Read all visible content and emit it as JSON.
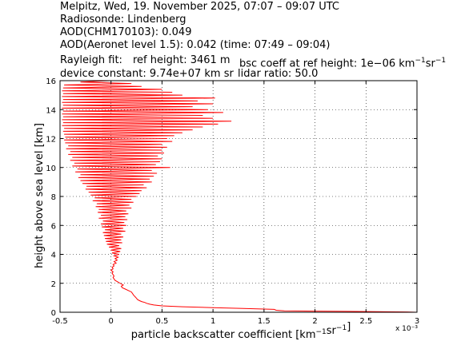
{
  "header": {
    "line1": "Melpitz, Wed, 19. November 2025, 07:07 – 09:07 UTC",
    "line2": "Radiosonde: Lindenberg",
    "line3": "AOD(CHM170103): 0.049",
    "line4": "AOD(Aeronet level 1.5): 0.042   (time: 07:49 – 09:04)",
    "rayleigh_label": "Rayleigh fit:",
    "ref_height": "ref height: 3461 m",
    "bsc_coeff_prefix": "bsc coeff at ref height: 1e−06 km",
    "device_constant": "device constant: 9.74e+07 km sr",
    "lidar_ratio": "lidar ratio: 50.0"
  },
  "chart_data": {
    "type": "line",
    "xlabel": "particle backscatter coefficient [km⁻¹sr⁻¹]",
    "ylabel": "height above sea level [km]",
    "x_multiplier": "x 10⁻³",
    "xlim": [
      -0.5,
      3
    ],
    "ylim": [
      0,
      16
    ],
    "x_ticks": [
      -0.5,
      0,
      0.5,
      1,
      1.5,
      2,
      2.5,
      3
    ],
    "x_tick_labels": [
      "-0.5",
      "0",
      "0.5",
      "1",
      "1.5",
      "2",
      "2.5",
      "3"
    ],
    "y_ticks": [
      0,
      2,
      4,
      6,
      8,
      10,
      12,
      14,
      16
    ],
    "y_tick_labels": [
      "0",
      "2",
      "4",
      "6",
      "8",
      "10",
      "12",
      "14",
      "16"
    ],
    "grid": true,
    "line_color": "#ff0000",
    "series": [
      {
        "values_note": "",
        "points": [
          [
            3.0,
            0.0
          ],
          [
            2.9,
            0.02
          ],
          [
            2.6,
            0.04
          ],
          [
            2.3,
            0.06
          ],
          [
            2.0,
            0.08
          ],
          [
            1.7,
            0.1
          ],
          [
            1.62,
            0.14
          ],
          [
            1.6,
            0.2
          ],
          [
            1.3,
            0.26
          ],
          [
            1.0,
            0.32
          ],
          [
            0.7,
            0.38
          ],
          [
            0.5,
            0.44
          ],
          [
            0.42,
            0.5
          ],
          [
            0.38,
            0.56
          ],
          [
            0.35,
            0.62
          ],
          [
            0.33,
            0.68
          ],
          [
            0.3,
            0.74
          ],
          [
            0.28,
            0.8
          ],
          [
            0.26,
            0.88
          ],
          [
            0.25,
            0.96
          ],
          [
            0.24,
            1.04
          ],
          [
            0.23,
            1.12
          ],
          [
            0.22,
            1.2
          ],
          [
            0.21,
            1.3
          ],
          [
            0.2,
            1.4
          ],
          [
            0.17,
            1.5
          ],
          [
            0.14,
            1.6
          ],
          [
            0.11,
            1.7
          ],
          [
            0.1,
            1.8
          ],
          [
            0.12,
            1.88
          ],
          [
            0.1,
            1.96
          ],
          [
            0.08,
            2.04
          ],
          [
            0.06,
            2.12
          ],
          [
            0.04,
            2.2
          ],
          [
            0.03,
            2.3
          ],
          [
            0.02,
            2.4
          ],
          [
            0.03,
            2.5
          ],
          [
            0.02,
            2.6
          ],
          [
            0.01,
            2.7
          ],
          [
            0.02,
            2.8
          ],
          [
            0.0,
            2.9
          ],
          [
            0.02,
            3.0
          ],
          [
            0.01,
            3.1
          ],
          [
            0.03,
            3.2
          ],
          [
            0.02,
            3.3
          ],
          [
            0.05,
            3.4
          ],
          [
            0.03,
            3.5
          ],
          [
            0.06,
            3.6
          ],
          [
            0.04,
            3.7
          ],
          [
            0.07,
            3.8
          ],
          [
            0.03,
            3.9
          ],
          [
            0.08,
            4.0
          ],
          [
            0.01,
            4.1
          ],
          [
            0.09,
            4.2
          ],
          [
            0.0,
            4.3
          ],
          [
            0.1,
            4.4
          ],
          [
            -0.02,
            4.5
          ],
          [
            0.08,
            4.6
          ],
          [
            -0.04,
            4.7
          ],
          [
            0.11,
            4.8
          ],
          [
            -0.05,
            4.9
          ],
          [
            0.1,
            5.0
          ],
          [
            -0.06,
            5.1
          ],
          [
            0.12,
            5.2
          ],
          [
            -0.07,
            5.3
          ],
          [
            0.1,
            5.4
          ],
          [
            -0.08,
            5.5
          ],
          [
            0.14,
            5.6
          ],
          [
            -0.06,
            5.7
          ],
          [
            0.12,
            5.8
          ],
          [
            -0.09,
            5.9
          ],
          [
            0.15,
            6.0
          ],
          [
            -0.1,
            6.1
          ],
          [
            0.13,
            6.2
          ],
          [
            -0.08,
            6.3
          ],
          [
            0.16,
            6.4
          ],
          [
            -0.12,
            6.5
          ],
          [
            0.14,
            6.6
          ],
          [
            -0.1,
            6.7
          ],
          [
            0.17,
            6.8
          ],
          [
            -0.13,
            6.9
          ],
          [
            0.15,
            7.0
          ],
          [
            -0.12,
            7.1
          ],
          [
            0.2,
            7.2
          ],
          [
            -0.15,
            7.3
          ],
          [
            0.18,
            7.4
          ],
          [
            -0.14,
            7.5
          ],
          [
            0.22,
            7.6
          ],
          [
            -0.18,
            7.7
          ],
          [
            0.2,
            7.8
          ],
          [
            -0.16,
            7.9
          ],
          [
            0.25,
            8.0
          ],
          [
            -0.2,
            8.1
          ],
          [
            0.28,
            8.2
          ],
          [
            -0.22,
            8.3
          ],
          [
            0.3,
            8.4
          ],
          [
            -0.25,
            8.5
          ],
          [
            0.35,
            8.6
          ],
          [
            -0.24,
            8.7
          ],
          [
            0.32,
            8.8
          ],
          [
            -0.28,
            8.9
          ],
          [
            0.4,
            9.0
          ],
          [
            -0.3,
            9.1
          ],
          [
            0.38,
            9.2
          ],
          [
            -0.32,
            9.3
          ],
          [
            0.42,
            9.4
          ],
          [
            -0.3,
            9.5
          ],
          [
            0.45,
            9.6
          ],
          [
            -0.35,
            9.7
          ],
          [
            0.4,
            9.8
          ],
          [
            -0.33,
            9.9
          ],
          [
            0.58,
            10.0
          ],
          [
            -0.38,
            10.1
          ],
          [
            0.44,
            10.2
          ],
          [
            -0.36,
            10.3
          ],
          [
            0.48,
            10.4
          ],
          [
            -0.4,
            10.5
          ],
          [
            0.5,
            10.6
          ],
          [
            -0.38,
            10.7
          ],
          [
            0.46,
            10.8
          ],
          [
            -0.42,
            10.9
          ],
          [
            0.52,
            11.0
          ],
          [
            -0.4,
            11.1
          ],
          [
            0.5,
            11.2
          ],
          [
            -0.44,
            11.3
          ],
          [
            0.55,
            11.4
          ],
          [
            -0.42,
            11.5
          ],
          [
            0.5,
            11.6
          ],
          [
            -0.45,
            11.7
          ],
          [
            0.6,
            11.8
          ],
          [
            -0.46,
            11.9
          ],
          [
            0.55,
            12.0
          ],
          [
            -0.45,
            12.1
          ],
          [
            0.62,
            12.2
          ],
          [
            -0.46,
            12.3
          ],
          [
            0.7,
            12.4
          ],
          [
            -0.47,
            12.5
          ],
          [
            0.8,
            12.6
          ],
          [
            -0.46,
            12.7
          ],
          [
            0.9,
            12.8
          ],
          [
            -0.48,
            12.9
          ],
          [
            1.05,
            13.0
          ],
          [
            -0.47,
            13.1
          ],
          [
            1.18,
            13.2
          ],
          [
            -0.48,
            13.3
          ],
          [
            1.0,
            13.4
          ],
          [
            -0.47,
            13.5
          ],
          [
            0.9,
            13.6
          ],
          [
            -0.48,
            13.7
          ],
          [
            1.1,
            13.8
          ],
          [
            -0.47,
            13.9
          ],
          [
            0.95,
            14.0
          ],
          [
            -0.48,
            14.1
          ],
          [
            0.8,
            14.2
          ],
          [
            -0.47,
            14.3
          ],
          [
            1.0,
            14.4
          ],
          [
            -0.48,
            14.5
          ],
          [
            0.85,
            14.6
          ],
          [
            -0.47,
            14.7
          ],
          [
            1.02,
            14.8
          ],
          [
            -0.48,
            14.9
          ],
          [
            0.7,
            15.0
          ],
          [
            -0.47,
            15.1
          ],
          [
            0.6,
            15.2
          ],
          [
            -0.48,
            15.3
          ],
          [
            0.5,
            15.4
          ],
          [
            -0.47,
            15.5
          ],
          [
            0.3,
            15.6
          ],
          [
            -0.46,
            15.7
          ],
          [
            0.2,
            15.8
          ],
          [
            -0.3,
            15.9
          ],
          [
            0.0,
            16.0
          ]
        ]
      }
    ]
  }
}
